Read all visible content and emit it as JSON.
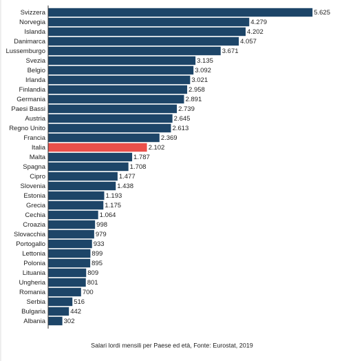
{
  "chart_data": {
    "type": "hbar",
    "caption": "Salari lordi mensili per Paese ed età, Fonte: Eurostat, 2019",
    "categories": [
      "Svizzera",
      "Norvegia",
      "Islanda",
      "Danimarca",
      "Lussemburgo",
      "Svezia",
      "Belgio",
      "Irlanda",
      "Finlandia",
      "Germania",
      "Paesi Bassi",
      "Austria",
      "Regno Unito",
      "Francia",
      "Italia",
      "Malta",
      "Spagna",
      "Cipro",
      "Slovenia",
      "Estonia",
      "Grecia",
      "Cechia",
      "Croazia",
      "Slovacchia",
      "Portogallo",
      "Lettonia",
      "Polonia",
      "Lituania",
      "Ungheria",
      "Romania",
      "Serbia",
      "Bulgaria",
      "Albania"
    ],
    "values": [
      5625,
      4279,
      4202,
      4057,
      3671,
      3135,
      3092,
      3021,
      2958,
      2891,
      2739,
      2645,
      2613,
      2369,
      2102,
      1787,
      1708,
      1477,
      1438,
      1193,
      1175,
      1064,
      998,
      979,
      933,
      899,
      895,
      809,
      801,
      700,
      516,
      442,
      302
    ],
    "value_labels": [
      "5.625",
      "4.279",
      "4.202",
      "4.057",
      "3.671",
      "3.135",
      "3.092",
      "3.021",
      "2.958",
      "2.891",
      "2.739",
      "2.645",
      "2.613",
      "2.369",
      "2.102",
      "1.787",
      "1.708",
      "1.477",
      "1.438",
      "1.193",
      "1.175",
      "1.064",
      "998",
      "979",
      "933",
      "899",
      "895",
      "809",
      "801",
      "700",
      "516",
      "442",
      "302"
    ],
    "colors": [
      "#1d4568",
      "#1d4568",
      "#1d4568",
      "#1d4568",
      "#1d4568",
      "#1d4568",
      "#1d4568",
      "#1d4568",
      "#1d4568",
      "#1d4568",
      "#1d4568",
      "#1d4568",
      "#1d4568",
      "#1d4568",
      "#ea4f4a",
      "#1d4568",
      "#1d4568",
      "#1d4568",
      "#1d4568",
      "#1d4568",
      "#1d4568",
      "#1d4568",
      "#1d4568",
      "#1d4568",
      "#1d4568",
      "#1d4568",
      "#1d4568",
      "#1d4568",
      "#1d4568",
      "#1d4568",
      "#1d4568",
      "#1d4568",
      "#1d4568"
    ],
    "xlim": [
      0,
      5900
    ]
  }
}
